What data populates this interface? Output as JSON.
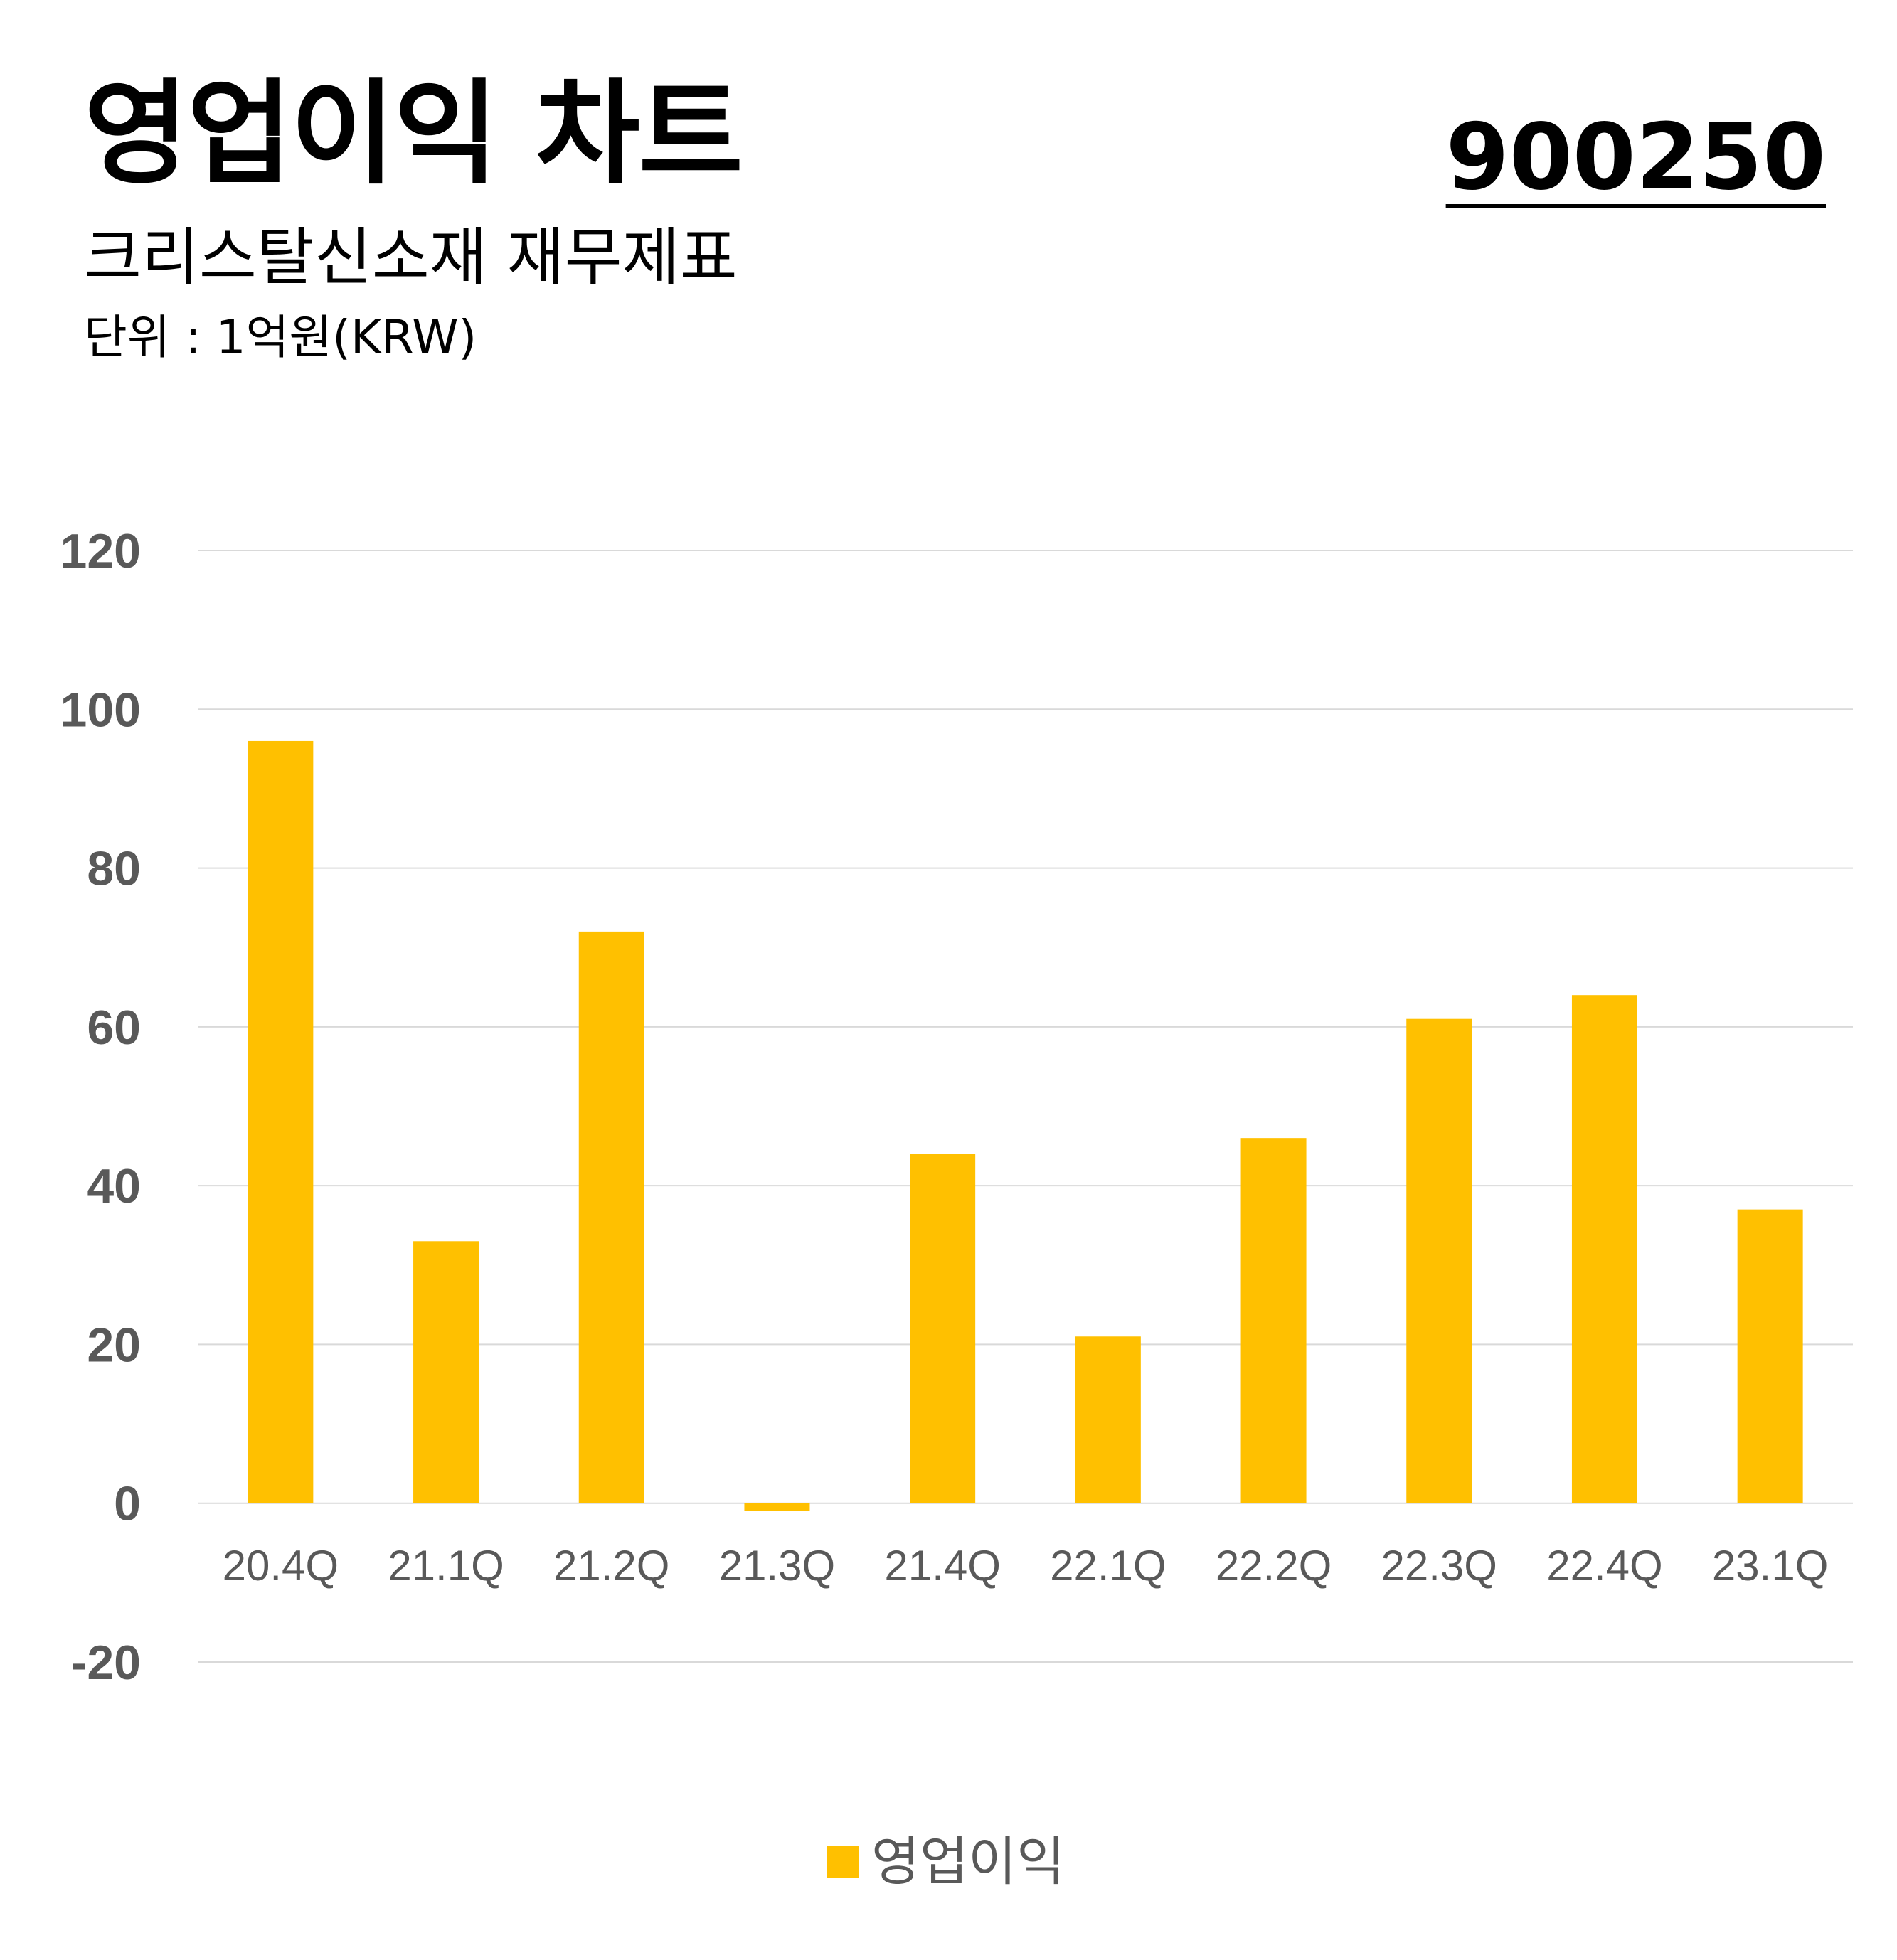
{
  "header": {
    "title": "영업이익 차트",
    "stock_code": "900250",
    "subtitle": "크리스탈신소재 재무제표",
    "unit": "단위 : 1억원(KRW)"
  },
  "colors": {
    "bar": "#FFC000",
    "grid": "#D9D9D9",
    "tick_text": "#595959"
  },
  "chart_data": {
    "type": "bar",
    "categories": [
      "20.4Q",
      "21.1Q",
      "21.2Q",
      "21.3Q",
      "21.4Q",
      "22.1Q",
      "22.2Q",
      "22.3Q",
      "22.4Q",
      "23.1Q"
    ],
    "series": [
      {
        "name": "영업이익",
        "values": [
          96,
          33,
          72,
          -1,
          44,
          21,
          46,
          61,
          64,
          37
        ]
      }
    ],
    "ylim": [
      -20,
      120
    ],
    "yticks": [
      -20,
      0,
      20,
      40,
      60,
      80,
      100,
      120
    ],
    "grid": true,
    "legend_position": "bottom-center"
  }
}
